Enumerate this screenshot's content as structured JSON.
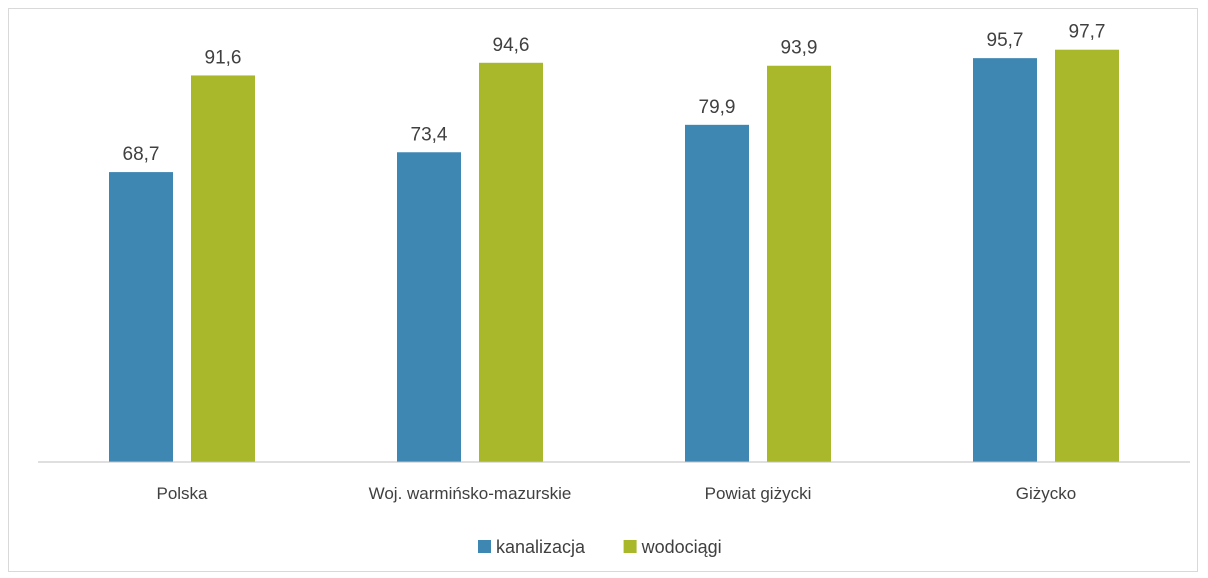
{
  "chart_data": {
    "type": "bar",
    "categories": [
      "Polska",
      "Woj. warmińsko-mazurskie",
      "Powiat giżycki",
      "Giżycko"
    ],
    "series": [
      {
        "name": "kanalizacja",
        "values": [
          68.7,
          73.4,
          79.9,
          95.7
        ],
        "labels": [
          "68,7",
          "73,4",
          "79,9",
          "95,7"
        ],
        "color": "#3F87B3"
      },
      {
        "name": "wodociągi",
        "values": [
          91.6,
          94.6,
          93.9,
          97.7
        ],
        "labels": [
          "91,6",
          "94,6",
          "93,9",
          "97,7"
        ],
        "color": "#A8B82A"
      }
    ],
    "ylim": [
      0,
      100
    ],
    "grid": false,
    "legend": "bottom",
    "title": "",
    "xlabel": "",
    "ylabel": ""
  }
}
